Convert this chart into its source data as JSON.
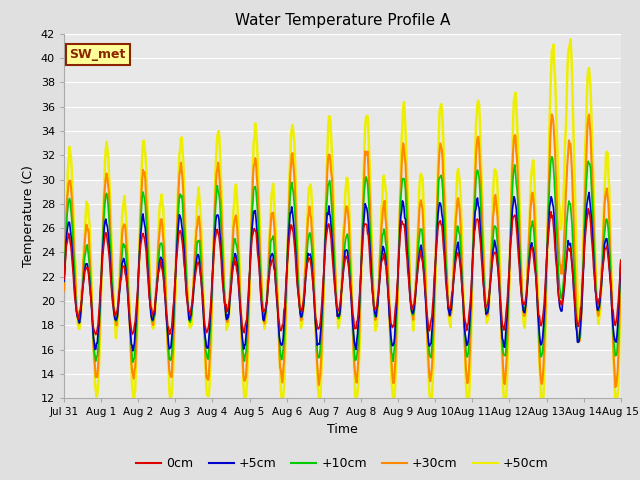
{
  "title": "Water Temperature Profile A",
  "xlabel": "Time",
  "ylabel": "Temperature (C)",
  "ylim": [
    12,
    42
  ],
  "yticks": [
    12,
    14,
    16,
    18,
    20,
    22,
    24,
    26,
    28,
    30,
    32,
    34,
    36,
    38,
    40,
    42
  ],
  "background_color": "#e0e0e0",
  "plot_bg_color": "#e8e8e8",
  "grid_color": "#ffffff",
  "annotation_text": "SW_met",
  "annotation_bg": "#ffff99",
  "annotation_border": "#8b2500",
  "line_colors": {
    "0cm": "#dd0000",
    "+5cm": "#0000cc",
    "+10cm": "#00cc00",
    "+30cm": "#ff8800",
    "+50cm": "#eeee00"
  },
  "line_widths": {
    "0cm": 1.2,
    "+5cm": 1.2,
    "+10cm": 1.2,
    "+30cm": 1.5,
    "+50cm": 1.8
  },
  "x_tick_labels": [
    "Jul 31",
    "Aug 1",
    "Aug 2",
    "Aug 3",
    "Aug 4",
    "Aug 5",
    "Aug 6",
    "Aug 7",
    "Aug 8",
    "Aug 9",
    "Aug 10",
    "Aug 11",
    "Aug 12",
    "Aug 13",
    "Aug 14",
    "Aug 15"
  ],
  "n_days": 15,
  "points_per_day": 48,
  "seed": 42
}
